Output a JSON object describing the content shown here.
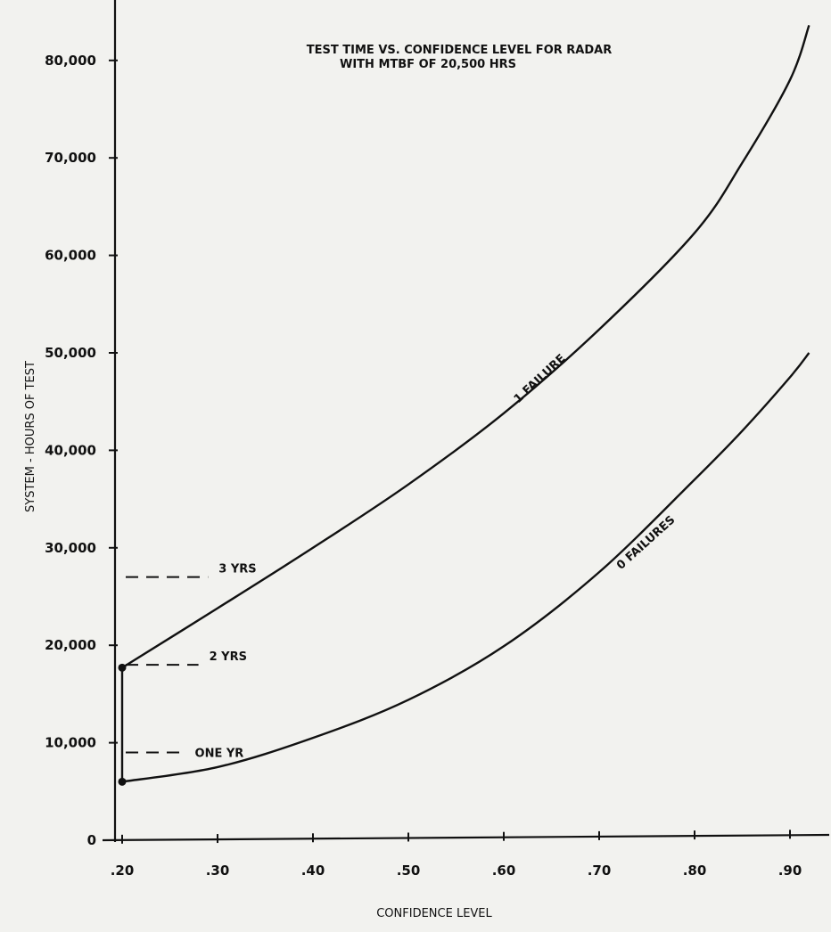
{
  "chart_data": {
    "type": "line",
    "title_line1": "TEST TIME VS. CONFIDENCE LEVEL FOR RADAR",
    "title_line2": "WITH MTBF OF 20,500 HRS",
    "xlabel": "CONFIDENCE LEVEL",
    "ylabel": "SYSTEM - HOURS OF TEST",
    "xlim": [
      0.2,
      0.92
    ],
    "ylim": [
      0,
      86000
    ],
    "x_ticks": [
      {
        "value": 0.2,
        "label": ".20"
      },
      {
        "value": 0.3,
        "label": ".30"
      },
      {
        "value": 0.4,
        "label": ".40"
      },
      {
        "value": 0.5,
        "label": ".50"
      },
      {
        "value": 0.6,
        "label": ".60"
      },
      {
        "value": 0.7,
        "label": ".70"
      },
      {
        "value": 0.8,
        "label": ".80"
      },
      {
        "value": 0.9,
        "label": ".90"
      }
    ],
    "y_ticks": [
      {
        "value": 0,
        "label": "0"
      },
      {
        "value": 10000,
        "label": "10,000"
      },
      {
        "value": 20000,
        "label": "20,000"
      },
      {
        "value": 30000,
        "label": "30,000"
      },
      {
        "value": 40000,
        "label": "40,000"
      },
      {
        "value": 50000,
        "label": "50,000"
      },
      {
        "value": 60000,
        "label": "60,000"
      },
      {
        "value": 70000,
        "label": "70,000"
      },
      {
        "value": 80000,
        "label": "80,000"
      }
    ],
    "series": [
      {
        "name": "1 FAILURE",
        "x": [
          0.2,
          0.3,
          0.4,
          0.5,
          0.6,
          0.7,
          0.8,
          0.85,
          0.9,
          0.92
        ],
        "values": [
          17700,
          23800,
          30000,
          36500,
          43800,
          52400,
          62300,
          69500,
          78000,
          83600
        ]
      },
      {
        "name": "0 FAILURES",
        "x": [
          0.2,
          0.3,
          0.4,
          0.5,
          0.6,
          0.7,
          0.8,
          0.85,
          0.9,
          0.92
        ],
        "values": [
          6000,
          7500,
          10500,
          14400,
          19900,
          27500,
          37000,
          42000,
          47500,
          50000
        ]
      }
    ],
    "markers": [
      {
        "x": 0.2,
        "y": 17700
      },
      {
        "x": 0.2,
        "y": 6000
      }
    ],
    "reference_lines": [
      {
        "label": "3 YRS",
        "y": 27000,
        "x_start": 0.2,
        "x_end": 0.29
      },
      {
        "label": "2 YRS",
        "y": 18000,
        "x_start": 0.2,
        "x_end": 0.28
      },
      {
        "label": "ONE YR",
        "y": 9000,
        "x_start": 0.2,
        "x_end": 0.265
      }
    ],
    "grid": false,
    "legend": "none"
  }
}
